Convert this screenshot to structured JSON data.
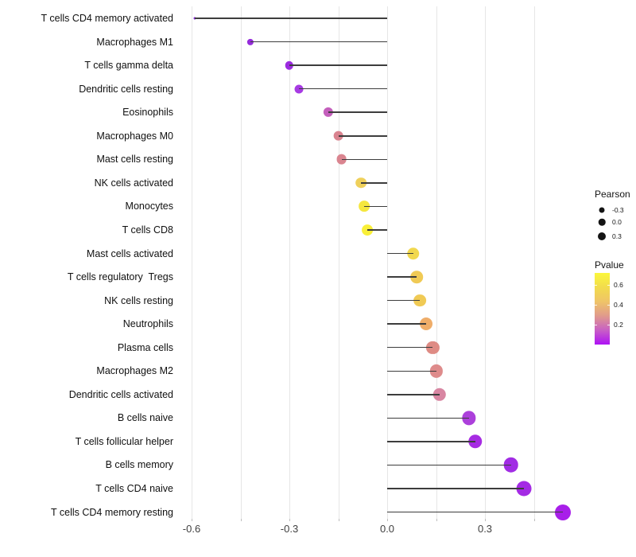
{
  "chart_data": {
    "type": "scatter",
    "subtype": "lollipop",
    "orientation": "horizontal",
    "title": "",
    "xlabel": "",
    "ylabel": "",
    "xlim": [
      -0.65,
      0.6
    ],
    "grid": true,
    "x_ticks": [
      {
        "label": "-0.6",
        "value": -0.6
      },
      {
        "label": "-0.3",
        "value": -0.3
      },
      {
        "label": "0.0",
        "value": 0.0
      },
      {
        "label": "0.3",
        "value": 0.3
      }
    ],
    "gridline_values": [
      -0.6,
      -0.45,
      -0.3,
      -0.15,
      0.0,
      0.15,
      0.3,
      0.45
    ],
    "points": [
      {
        "label": "T cells CD4 memory activated",
        "pearson": -0.59,
        "color": "#8826DD"
      },
      {
        "label": "Macrophages M1",
        "pearson": -0.42,
        "color": "#952BDB"
      },
      {
        "label": "T cells gamma delta",
        "pearson": -0.3,
        "color": "#9C2CE0"
      },
      {
        "label": "Dendritic cells resting",
        "pearson": -0.27,
        "color": "#A73BE3"
      },
      {
        "label": "Eosinophils",
        "pearson": -0.18,
        "color": "#C45FBC"
      },
      {
        "label": "Macrophages M0",
        "pearson": -0.15,
        "color": "#D9838F"
      },
      {
        "label": "Mast cells resting",
        "pearson": -0.14,
        "color": "#DA8590"
      },
      {
        "label": "NK cells activated",
        "pearson": -0.08,
        "color": "#EFD05B"
      },
      {
        "label": "Monocytes",
        "pearson": -0.07,
        "color": "#F5E73E"
      },
      {
        "label": "T cells CD8",
        "pearson": -0.06,
        "color": "#F9EF38"
      },
      {
        "label": "Mast cells activated",
        "pearson": 0.08,
        "color": "#F1D84E"
      },
      {
        "label": "T cells regulatory  Tregs",
        "pearson": 0.09,
        "color": "#F0CA55"
      },
      {
        "label": "NK cells resting",
        "pearson": 0.1,
        "color": "#F0CA55"
      },
      {
        "label": "Neutrophils",
        "pearson": 0.12,
        "color": "#EFAD69"
      },
      {
        "label": "Plasma cells",
        "pearson": 0.14,
        "color": "#DE8B84"
      },
      {
        "label": "Macrophages M2",
        "pearson": 0.15,
        "color": "#DE8B8B"
      },
      {
        "label": "Dendritic cells activated",
        "pearson": 0.16,
        "color": "#D886A2"
      },
      {
        "label": "B cells naive",
        "pearson": 0.25,
        "color": "#AC40DB"
      },
      {
        "label": "T cells follicular helper",
        "pearson": 0.27,
        "color": "#A62CE2"
      },
      {
        "label": "B cells memory",
        "pearson": 0.38,
        "color": "#A12CE4"
      },
      {
        "label": "T cells CD4 naive",
        "pearson": 0.42,
        "color": "#A42BE4"
      },
      {
        "label": "T cells CD4 memory resting",
        "pearson": 0.54,
        "color": "#A81FE9"
      }
    ]
  },
  "legend": {
    "size_legend": {
      "title": "Pearson",
      "items": [
        {
          "label": "-0.3",
          "diameter": 7
        },
        {
          "label": "0.0",
          "diameter": 8.5
        },
        {
          "label": "0.3",
          "diameter": 10
        }
      ]
    },
    "color_legend": {
      "title": "Pvalue",
      "tick_labels": [
        "0.6",
        "0.4",
        "0.2"
      ],
      "gradient_top_to_bottom": [
        "#FBF73C",
        "#F2DC4C",
        "#EFC468",
        "#E09A8C",
        "#C85FC5",
        "#AE12F5"
      ]
    }
  }
}
